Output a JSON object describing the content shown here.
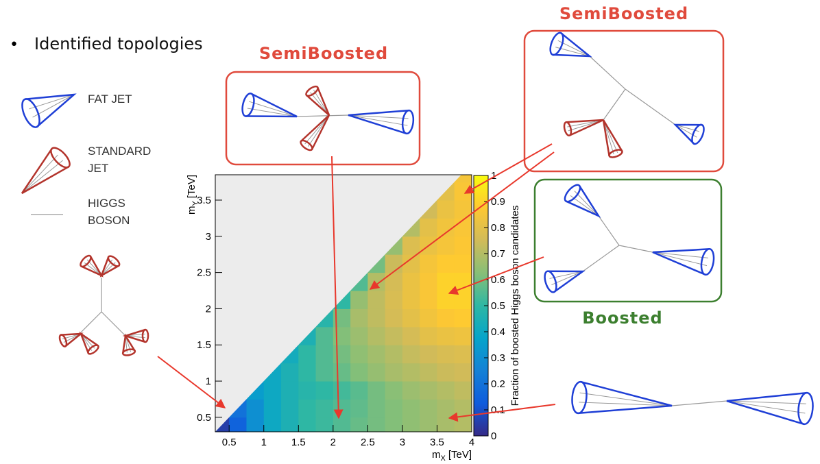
{
  "bullet": "Identified topologies",
  "legend": [
    {
      "label": [
        "FAT JET"
      ]
    },
    {
      "label": [
        "STANDARD",
        "JET"
      ]
    },
    {
      "label": [
        "HIGGS",
        "BOSON"
      ]
    }
  ],
  "annotations": [
    "SemiBoosted",
    "SemiBoosted",
    "Boosted"
  ],
  "chart_data": {
    "type": "heatmap",
    "xlabel": {
      "symbol": "m",
      "sub": "X",
      "unit": "[TeV]"
    },
    "ylabel": {
      "symbol": "m",
      "sub": "Y",
      "unit": "[TeV]"
    },
    "zlabel": "Fraction of boosted Higgs boson candidates",
    "xlim": [
      0.3,
      4
    ],
    "ylim": [
      0.3,
      3.85
    ],
    "zlim": [
      0,
      1
    ],
    "xticks": [
      0.5,
      1,
      1.5,
      2,
      2.5,
      3,
      3.5,
      4
    ],
    "yticks": [
      0.5,
      1,
      1.5,
      2,
      2.5,
      3,
      3.5
    ],
    "zticks": [
      0,
      0.1,
      0.2,
      0.3,
      0.4,
      0.5,
      0.6,
      0.7,
      0.8,
      0.9,
      1
    ],
    "colorscale": [
      "#352a87",
      "#0f5cdd",
      "#1481d6",
      "#06a4ca",
      "#2eb7a4",
      "#87bf77",
      "#d1bb59",
      "#fec832",
      "#f9fb0e"
    ],
    "xbins": [
      0.3,
      0.5,
      0.75,
      1,
      1.25,
      1.5,
      1.75,
      2,
      2.25,
      2.5,
      2.75,
      3,
      3.25,
      3.5,
      3.75,
      4
    ],
    "ybins": [
      0.3,
      0.5,
      0.75,
      1,
      1.25,
      1.5,
      1.75,
      2,
      2.25,
      2.5,
      2.75,
      3,
      3.25,
      3.5,
      3.75,
      3.85
    ],
    "z": [
      [
        0.05,
        0.15,
        0.3,
        0.4,
        0.45,
        0.5,
        0.52,
        0.55,
        0.58,
        0.6,
        0.62,
        0.64,
        0.66,
        0.68,
        0.7
      ],
      [
        null,
        0.2,
        0.3,
        0.4,
        0.45,
        0.5,
        0.52,
        0.55,
        0.57,
        0.6,
        0.62,
        0.64,
        0.66,
        0.68,
        0.7
      ],
      [
        null,
        null,
        0.35,
        0.4,
        0.45,
        0.48,
        0.5,
        0.53,
        0.56,
        0.6,
        0.63,
        0.66,
        0.68,
        0.7,
        0.72
      ],
      [
        null,
        null,
        null,
        0.4,
        0.45,
        0.5,
        0.55,
        0.58,
        0.62,
        0.65,
        0.68,
        0.7,
        0.72,
        0.74,
        0.75
      ],
      [
        null,
        null,
        null,
        null,
        0.42,
        0.5,
        0.55,
        0.6,
        0.64,
        0.67,
        0.7,
        0.73,
        0.75,
        0.77,
        0.78
      ],
      [
        null,
        null,
        null,
        null,
        null,
        0.45,
        0.55,
        0.62,
        0.66,
        0.7,
        0.73,
        0.76,
        0.8,
        0.82,
        0.83
      ],
      [
        null,
        null,
        null,
        null,
        null,
        null,
        0.48,
        0.6,
        0.68,
        0.72,
        0.76,
        0.8,
        0.84,
        0.87,
        0.88
      ],
      [
        null,
        null,
        null,
        null,
        null,
        null,
        null,
        0.5,
        0.65,
        0.72,
        0.77,
        0.82,
        0.86,
        0.9,
        0.9
      ],
      [
        null,
        null,
        null,
        null,
        null,
        null,
        null,
        null,
        0.55,
        0.7,
        0.76,
        0.82,
        0.86,
        0.9,
        0.9
      ],
      [
        null,
        null,
        null,
        null,
        null,
        null,
        null,
        null,
        null,
        0.6,
        0.74,
        0.8,
        0.85,
        0.88,
        0.88
      ],
      [
        null,
        null,
        null,
        null,
        null,
        null,
        null,
        null,
        null,
        null,
        0.65,
        0.78,
        0.82,
        0.85,
        0.87
      ],
      [
        null,
        null,
        null,
        null,
        null,
        null,
        null,
        null,
        null,
        null,
        null,
        0.7,
        0.8,
        0.84,
        0.86
      ],
      [
        null,
        null,
        null,
        null,
        null,
        null,
        null,
        null,
        null,
        null,
        null,
        null,
        0.75,
        0.82,
        0.85
      ],
      [
        null,
        null,
        null,
        null,
        null,
        null,
        null,
        null,
        null,
        null,
        null,
        null,
        null,
        0.8,
        0.86
      ],
      [
        null,
        null,
        null,
        null,
        null,
        null,
        null,
        null,
        null,
        null,
        null,
        null,
        null,
        null,
        0.85
      ]
    ]
  }
}
